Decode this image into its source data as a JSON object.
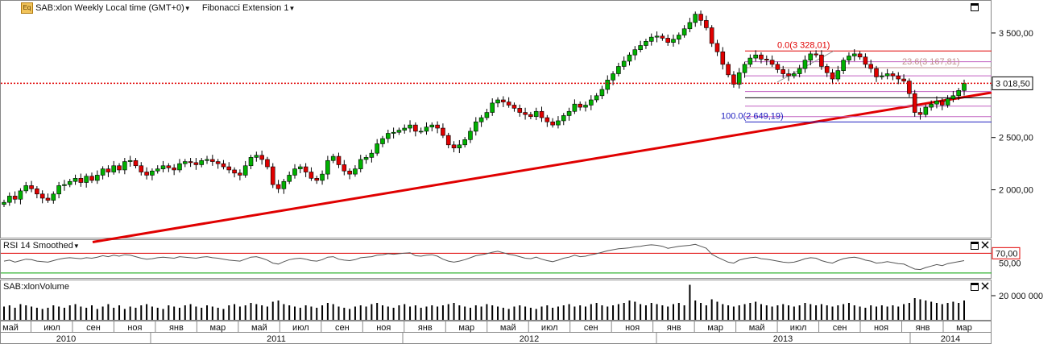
{
  "header": {
    "symbol_title": "SAB:xlon Weekly Local time (GMT+0)",
    "study_title": "Fibonacci Extension 1"
  },
  "panels": {
    "rsi_title": "RSI 14 Smoothed",
    "volume_title": "SAB:xlonVolume"
  },
  "chart_data": [
    {
      "type": "candlestick",
      "title": "SAB:xlon Weekly Local time (GMT+0)",
      "price_axis_ticks": [
        "3 500,00",
        "3 000,00",
        "2 500,00",
        "2 000,00"
      ],
      "price_axis_values": [
        3500,
        3000,
        2500,
        2000
      ],
      "ylim": [
        1550,
        3800
      ],
      "last_price": 3018.5,
      "last_price_label": "3 018,50",
      "trendline": {
        "color": "#e00000",
        "from": [
          "2010-05",
          1500
        ],
        "to": [
          "2014-04",
          2930
        ]
      },
      "fibonacci": [
        {
          "label": "0.0(3 328,01)",
          "value": 3328.01,
          "color": "#e00000"
        },
        {
          "label": "23.6(3 167,81)",
          "value": 3167.81,
          "color": "#c09090"
        },
        {
          "label": "100.0(2 649,19)",
          "value": 2649.19,
          "color": "#2020c0"
        }
      ],
      "close_series": [
        1880,
        1940,
        1910,
        1990,
        2040,
        2010,
        1960,
        1920,
        1900,
        1960,
        2040,
        2050,
        2080,
        2110,
        2070,
        2130,
        2090,
        2140,
        2200,
        2170,
        2230,
        2190,
        2270,
        2280,
        2230,
        2170,
        2140,
        2180,
        2200,
        2230,
        2210,
        2190,
        2250,
        2270,
        2260,
        2240,
        2280,
        2290,
        2270,
        2250,
        2220,
        2190,
        2160,
        2140,
        2230,
        2310,
        2330,
        2290,
        2220,
        2050,
        2010,
        2080,
        2140,
        2200,
        2220,
        2170,
        2110,
        2090,
        2150,
        2280,
        2320,
        2240,
        2180,
        2150,
        2200,
        2290,
        2310,
        2350,
        2440,
        2490,
        2540,
        2550,
        2570,
        2590,
        2620,
        2560,
        2560,
        2600,
        2620,
        2590,
        2520,
        2430,
        2400,
        2430,
        2480,
        2560,
        2650,
        2690,
        2740,
        2830,
        2860,
        2840,
        2810,
        2780,
        2740,
        2720,
        2700,
        2750,
        2690,
        2650,
        2620,
        2660,
        2710,
        2750,
        2820,
        2790,
        2810,
        2860,
        2900,
        2960,
        3050,
        3110,
        3180,
        3230,
        3290,
        3340,
        3380,
        3420,
        3460,
        3470,
        3450,
        3410,
        3440,
        3480,
        3540,
        3600,
        3680,
        3620,
        3550,
        3400,
        3320,
        3200,
        3100,
        3010,
        3120,
        3200,
        3260,
        3290,
        3250,
        3240,
        3200,
        3150,
        3110,
        3090,
        3110,
        3160,
        3240,
        3300,
        3290,
        3180,
        3120,
        3060,
        3140,
        3240,
        3280,
        3300,
        3270,
        3200,
        3160,
        3080,
        3090,
        3110,
        3090,
        3060,
        3040,
        2920,
        2740,
        2720,
        2790,
        2820,
        2850,
        2810,
        2870,
        2900,
        2950,
        3018.5
      ],
      "x_ticks": [
        "май",
        "июл",
        "сен",
        "ноя",
        "янв",
        "мар",
        "май",
        "июл",
        "сен",
        "ноя",
        "янв",
        "мар",
        "май",
        "июл",
        "сен",
        "ноя",
        "янв",
        "мар",
        "май",
        "июл",
        "сен",
        "ноя",
        "янв",
        "мар"
      ],
      "year_labels": [
        "2010",
        "2011",
        "2012",
        "2013",
        "2014"
      ]
    },
    {
      "type": "line",
      "title": "RSI 14 Smoothed",
      "levels": [
        {
          "value": 70,
          "label": "70,00",
          "color": "#e00000"
        },
        {
          "value": 30,
          "color": "#00a000"
        }
      ],
      "axis_tick": "50,00",
      "ylim": [
        20,
        95
      ],
      "values": [
        54,
        56,
        52,
        55,
        58,
        57,
        54,
        53,
        52,
        55,
        58,
        60,
        61,
        60,
        59,
        61,
        60,
        62,
        65,
        63,
        66,
        64,
        67,
        66,
        63,
        60,
        58,
        59,
        61,
        62,
        61,
        60,
        63,
        62,
        61,
        60,
        62,
        63,
        61,
        60,
        58,
        56,
        55,
        54,
        58,
        62,
        63,
        60,
        56,
        50,
        48,
        53,
        57,
        59,
        60,
        58,
        55,
        54,
        57,
        62,
        63,
        58,
        56,
        55,
        57,
        61,
        62,
        63,
        66,
        67,
        69,
        68,
        69,
        70,
        71,
        65,
        64,
        66,
        67,
        64,
        58,
        54,
        52,
        54,
        57,
        61,
        65,
        67,
        69,
        72,
        74,
        71,
        68,
        66,
        63,
        60,
        59,
        62,
        58,
        55,
        53,
        56,
        60,
        62,
        66,
        63,
        64,
        67,
        69,
        72,
        75,
        77,
        79,
        80,
        81,
        83,
        84,
        86,
        87,
        86,
        84,
        80,
        82,
        84,
        85,
        86,
        88,
        84,
        80,
        68,
        62,
        57,
        52,
        50,
        56,
        59,
        61,
        62,
        59,
        58,
        56,
        54,
        52,
        51,
        52,
        55,
        59,
        61,
        60,
        55,
        52,
        50,
        55,
        59,
        61,
        62,
        60,
        56,
        54,
        50,
        51,
        53,
        51,
        49,
        48,
        43,
        38,
        37,
        41,
        44,
        47,
        45,
        49,
        51,
        53,
        55
      ]
    },
    {
      "type": "bar",
      "title": "SAB:xlonVolume",
      "axis_tick": "20 000 000",
      "ylim": [
        0,
        30000000
      ],
      "values": [
        11,
        12,
        10,
        13,
        12,
        11,
        10,
        9,
        10,
        12,
        11,
        10,
        12,
        13,
        11,
        10,
        12,
        9,
        11,
        13,
        10,
        12,
        9,
        11,
        10,
        12,
        13,
        11,
        10,
        9,
        12,
        11,
        10,
        12,
        13,
        11,
        10,
        12,
        11,
        10,
        9,
        12,
        13,
        11,
        12,
        14,
        13,
        12,
        11,
        15,
        16,
        13,
        12,
        11,
        10,
        12,
        11,
        10,
        12,
        14,
        13,
        11,
        10,
        9,
        11,
        12,
        11,
        13,
        14,
        12,
        11,
        10,
        12,
        13,
        11,
        12,
        10,
        11,
        12,
        11,
        12,
        13,
        14,
        12,
        11,
        10,
        12,
        11,
        13,
        12,
        11,
        10,
        9,
        11,
        12,
        11,
        10,
        9,
        11,
        12,
        10,
        11,
        12,
        13,
        11,
        12,
        11,
        13,
        14,
        12,
        11,
        12,
        13,
        14,
        16,
        15,
        13,
        12,
        14,
        13,
        12,
        11,
        13,
        14,
        12,
        29,
        16,
        14,
        12,
        17,
        15,
        13,
        12,
        11,
        12,
        13,
        14,
        15,
        13,
        12,
        11,
        12,
        13,
        12,
        11,
        12,
        14,
        13,
        12,
        13,
        12,
        11,
        12,
        13,
        14,
        12,
        11,
        10,
        12,
        11,
        12,
        11,
        12,
        11,
        13,
        14,
        18,
        17,
        16,
        15,
        14,
        13,
        14,
        15,
        14,
        16
      ]
    }
  ]
}
